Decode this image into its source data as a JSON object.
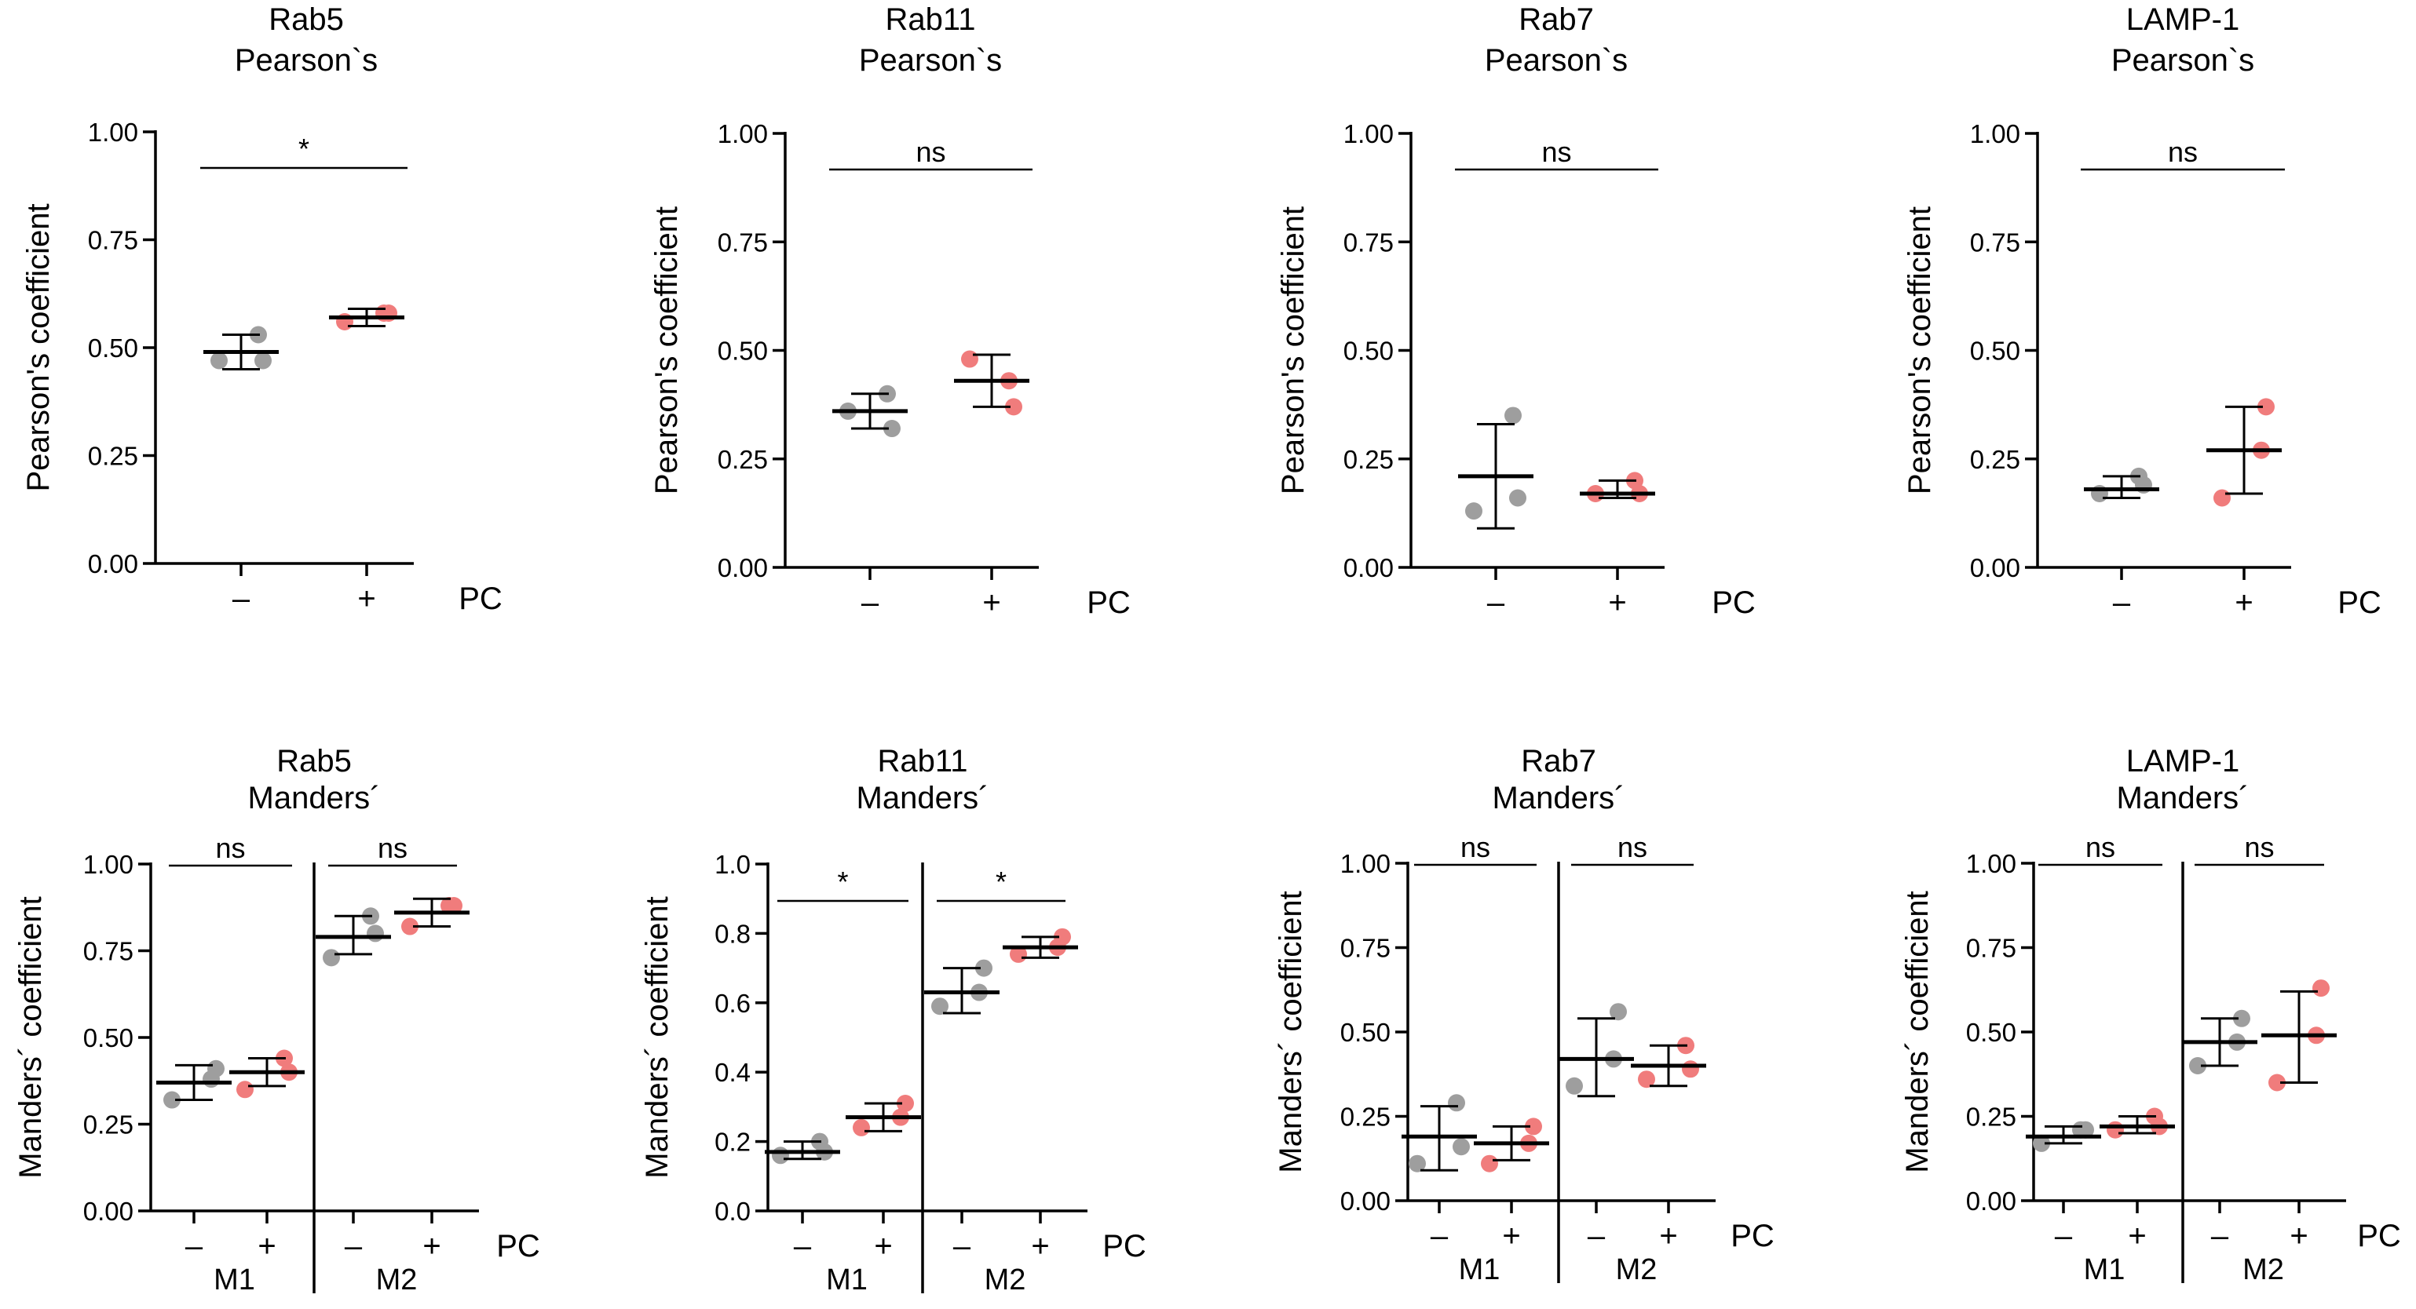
{
  "colors": {
    "negative": "#9e9e9e",
    "positive": "#f07c7c",
    "axis": "#000000"
  },
  "chart_data": [
    {
      "id": "rab5-pearson",
      "type": "scatter",
      "row": "pearson",
      "title": [
        "Rab5",
        "Pearson`s"
      ],
      "ylabel": "Pearson's coefficient",
      "ylim": [
        0,
        1
      ],
      "yticks": [
        "0.00",
        "0.25",
        "0.50",
        "0.75",
        "1.00"
      ],
      "ytick_values": [
        0,
        0.25,
        0.5,
        0.75,
        1.0
      ],
      "x_suffix": "PC",
      "groups": [
        {
          "label": "–",
          "condition": "negative",
          "mean": 0.49,
          "sd_low": 0.45,
          "sd_high": 0.53,
          "points": [
            0.47,
            0.53,
            0.47
          ]
        },
        {
          "label": "+",
          "condition": "positive",
          "mean": 0.57,
          "sd_low": 0.55,
          "sd_high": 0.59,
          "points": [
            0.56,
            0.58,
            0.58
          ]
        }
      ],
      "sections": [],
      "annotations": [
        {
          "text": "*",
          "from": 0,
          "to": 1
        }
      ]
    },
    {
      "id": "rab11-pearson",
      "type": "scatter",
      "row": "pearson",
      "title": [
        "Rab11",
        "Pearson`s"
      ],
      "ylabel": "Pearson's coefficient",
      "ylim": [
        0,
        1
      ],
      "yticks": [
        "0.00",
        "0.25",
        "0.50",
        "0.75",
        "1.00"
      ],
      "ytick_values": [
        0,
        0.25,
        0.5,
        0.75,
        1.0
      ],
      "x_suffix": "PC",
      "groups": [
        {
          "label": "–",
          "condition": "negative",
          "mean": 0.36,
          "sd_low": 0.32,
          "sd_high": 0.4,
          "points": [
            0.36,
            0.4,
            0.32
          ]
        },
        {
          "label": "+",
          "condition": "positive",
          "mean": 0.43,
          "sd_low": 0.37,
          "sd_high": 0.49,
          "points": [
            0.48,
            0.43,
            0.37
          ]
        }
      ],
      "sections": [],
      "annotations": [
        {
          "text": "ns",
          "from": 0,
          "to": 1
        }
      ]
    },
    {
      "id": "rab7-pearson",
      "type": "scatter",
      "row": "pearson",
      "title": [
        "Rab7",
        "Pearson`s"
      ],
      "ylabel": "Pearson's coefficient",
      "ylim": [
        0,
        1
      ],
      "yticks": [
        "0.00",
        "0.25",
        "0.50",
        "0.75",
        "1.00"
      ],
      "ytick_values": [
        0,
        0.25,
        0.5,
        0.75,
        1.0
      ],
      "x_suffix": "PC",
      "groups": [
        {
          "label": "–",
          "condition": "negative",
          "mean": 0.21,
          "sd_low": 0.09,
          "sd_high": 0.33,
          "points": [
            0.13,
            0.35,
            0.16
          ]
        },
        {
          "label": "+",
          "condition": "positive",
          "mean": 0.17,
          "sd_low": 0.16,
          "sd_high": 0.2,
          "points": [
            0.17,
            0.2,
            0.17
          ]
        }
      ],
      "sections": [],
      "annotations": [
        {
          "text": "ns",
          "from": 0,
          "to": 1
        }
      ]
    },
    {
      "id": "lamp1-pearson",
      "type": "scatter",
      "row": "pearson",
      "title": [
        "LAMP-1",
        "Pearson`s"
      ],
      "ylabel": "Pearson's coefficient",
      "ylim": [
        0,
        1
      ],
      "yticks": [
        "0.00",
        "0.25",
        "0.50",
        "0.75",
        "1.00"
      ],
      "ytick_values": [
        0,
        0.25,
        0.5,
        0.75,
        1.0
      ],
      "x_suffix": "PC",
      "groups": [
        {
          "label": "–",
          "condition": "negative",
          "mean": 0.18,
          "sd_low": 0.16,
          "sd_high": 0.21,
          "points": [
            0.17,
            0.21,
            0.19
          ]
        },
        {
          "label": "+",
          "condition": "positive",
          "mean": 0.27,
          "sd_low": 0.17,
          "sd_high": 0.37,
          "points": [
            0.16,
            0.27,
            0.37
          ]
        }
      ],
      "sections": [],
      "annotations": [
        {
          "text": "ns",
          "from": 0,
          "to": 1
        }
      ]
    },
    {
      "id": "rab5-manders",
      "type": "scatter",
      "row": "manders",
      "title": [
        "Rab5",
        "Manders´"
      ],
      "ylabel": "Manders´ coefficient",
      "ylim": [
        0,
        1
      ],
      "yticks": [
        "0.00",
        "0.25",
        "0.50",
        "0.75",
        "1.00"
      ],
      "ytick_values": [
        0,
        0.25,
        0.5,
        0.75,
        1.0
      ],
      "x_suffix": "PC",
      "groups": [
        {
          "label": "–",
          "condition": "negative",
          "mean": 0.37,
          "sd_low": 0.32,
          "sd_high": 0.42,
          "points": [
            0.32,
            0.38,
            0.41
          ]
        },
        {
          "label": "+",
          "condition": "positive",
          "mean": 0.4,
          "sd_low": 0.36,
          "sd_high": 0.44,
          "points": [
            0.35,
            0.44,
            0.4
          ]
        },
        {
          "label": "–",
          "condition": "negative",
          "mean": 0.79,
          "sd_low": 0.74,
          "sd_high": 0.85,
          "points": [
            0.73,
            0.85,
            0.8
          ]
        },
        {
          "label": "+",
          "condition": "positive",
          "mean": 0.86,
          "sd_low": 0.82,
          "sd_high": 0.9,
          "points": [
            0.82,
            0.88,
            0.88
          ]
        }
      ],
      "sections": [
        {
          "label": "M1",
          "from": 0,
          "to": 1
        },
        {
          "label": "M2",
          "from": 2,
          "to": 3
        }
      ],
      "annotations": [
        {
          "text": "ns",
          "from": 0,
          "to": 1
        },
        {
          "text": "ns",
          "from": 2,
          "to": 3
        }
      ]
    },
    {
      "id": "rab11-manders",
      "type": "scatter",
      "row": "manders",
      "title": [
        "Rab11",
        "Manders´"
      ],
      "ylabel": "Manders´ coefficient",
      "ylim": [
        0,
        1
      ],
      "yticks": [
        "0.0",
        "0.2",
        "0.4",
        "0.6",
        "0.8",
        "1.0"
      ],
      "ytick_values": [
        0,
        0.2,
        0.4,
        0.6,
        0.8,
        1.0
      ],
      "x_suffix": "PC",
      "groups": [
        {
          "label": "–",
          "condition": "negative",
          "mean": 0.17,
          "sd_low": 0.15,
          "sd_high": 0.2,
          "points": [
            0.16,
            0.2,
            0.17
          ]
        },
        {
          "label": "+",
          "condition": "positive",
          "mean": 0.27,
          "sd_low": 0.23,
          "sd_high": 0.31,
          "points": [
            0.24,
            0.27,
            0.31
          ]
        },
        {
          "label": "–",
          "condition": "negative",
          "mean": 0.63,
          "sd_low": 0.57,
          "sd_high": 0.7,
          "points": [
            0.59,
            0.63,
            0.7
          ]
        },
        {
          "label": "+",
          "condition": "positive",
          "mean": 0.76,
          "sd_low": 0.73,
          "sd_high": 0.79,
          "points": [
            0.74,
            0.76,
            0.79
          ]
        }
      ],
      "sections": [
        {
          "label": "M1",
          "from": 0,
          "to": 1
        },
        {
          "label": "M2",
          "from": 2,
          "to": 3
        }
      ],
      "annotations": [
        {
          "text": "*",
          "from": 0,
          "to": 1
        },
        {
          "text": "*",
          "from": 2,
          "to": 3
        }
      ]
    },
    {
      "id": "rab7-manders",
      "type": "scatter",
      "row": "manders",
      "title": [
        "Rab7",
        "Manders´"
      ],
      "ylabel": "Manders´ coefficient",
      "ylim": [
        0,
        1
      ],
      "yticks": [
        "0.00",
        "0.25",
        "0.50",
        "0.75",
        "1.00"
      ],
      "ytick_values": [
        0,
        0.25,
        0.5,
        0.75,
        1.0
      ],
      "x_suffix": "PC",
      "groups": [
        {
          "label": "–",
          "condition": "negative",
          "mean": 0.19,
          "sd_low": 0.09,
          "sd_high": 0.28,
          "points": [
            0.11,
            0.29,
            0.16
          ]
        },
        {
          "label": "+",
          "condition": "positive",
          "mean": 0.17,
          "sd_low": 0.12,
          "sd_high": 0.22,
          "points": [
            0.11,
            0.17,
            0.22
          ]
        },
        {
          "label": "–",
          "condition": "negative",
          "mean": 0.42,
          "sd_low": 0.31,
          "sd_high": 0.54,
          "points": [
            0.34,
            0.42,
            0.56
          ]
        },
        {
          "label": "+",
          "condition": "positive",
          "mean": 0.4,
          "sd_low": 0.34,
          "sd_high": 0.46,
          "points": [
            0.36,
            0.46,
            0.39
          ]
        }
      ],
      "sections": [
        {
          "label": "M1",
          "from": 0,
          "to": 1
        },
        {
          "label": "M2",
          "from": 2,
          "to": 3
        }
      ],
      "annotations": [
        {
          "text": "ns",
          "from": 0,
          "to": 1
        },
        {
          "text": "ns",
          "from": 2,
          "to": 3
        }
      ]
    },
    {
      "id": "lamp1-manders",
      "type": "scatter",
      "row": "manders",
      "title": [
        "LAMP-1",
        "Manders´"
      ],
      "ylabel": "Manders´ coefficient",
      "ylim": [
        0,
        1
      ],
      "yticks": [
        "0.00",
        "0.25",
        "0.50",
        "0.75",
        "1.00"
      ],
      "ytick_values": [
        0,
        0.25,
        0.5,
        0.75,
        1.0
      ],
      "x_suffix": "PC",
      "groups": [
        {
          "label": "–",
          "condition": "negative",
          "mean": 0.19,
          "sd_low": 0.17,
          "sd_high": 0.22,
          "points": [
            0.17,
            0.21,
            0.21
          ]
        },
        {
          "label": "+",
          "condition": "positive",
          "mean": 0.22,
          "sd_low": 0.2,
          "sd_high": 0.25,
          "points": [
            0.21,
            0.25,
            0.22
          ]
        },
        {
          "label": "–",
          "condition": "negative",
          "mean": 0.47,
          "sd_low": 0.4,
          "sd_high": 0.54,
          "points": [
            0.4,
            0.47,
            0.54
          ]
        },
        {
          "label": "+",
          "condition": "positive",
          "mean": 0.49,
          "sd_low": 0.35,
          "sd_high": 0.62,
          "points": [
            0.35,
            0.49,
            0.63
          ]
        }
      ],
      "sections": [
        {
          "label": "M1",
          "from": 0,
          "to": 1
        },
        {
          "label": "M2",
          "from": 2,
          "to": 3
        }
      ],
      "annotations": [
        {
          "text": "ns",
          "from": 0,
          "to": 1
        },
        {
          "text": "ns",
          "from": 2,
          "to": 3
        }
      ]
    }
  ]
}
